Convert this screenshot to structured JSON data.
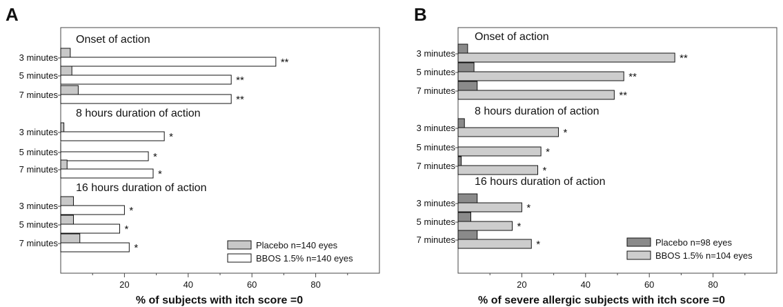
{
  "chart_data": [
    {
      "panel": "A",
      "type": "bar",
      "orientation": "horizontal",
      "xlabel": "% of subjects with itch score =0",
      "xlim": [
        0,
        100
      ],
      "xticks": [
        "20",
        "40",
        "60",
        "80"
      ],
      "colors": {
        "placebo": "#c8c8c8",
        "active": "#ffffff"
      },
      "legend": [
        "Placebo n=140 eyes",
        "BBOS 1.5% n=140 eyes"
      ],
      "legend_position": "bottom-right",
      "groups": [
        {
          "label": "Onset of action",
          "categories": [
            "3 minutes",
            "5 minutes",
            "7 minutes"
          ],
          "placebo": [
            3,
            3.5,
            5.5
          ],
          "active": [
            67.5,
            53.5,
            53.5
          ],
          "sig": [
            "**",
            "**",
            "**"
          ]
        },
        {
          "label": "8 hours duration of action",
          "categories": [
            "3 minutes",
            "5 minutes",
            "7 minutes"
          ],
          "placebo": [
            1,
            0,
            2
          ],
          "active": [
            32.5,
            27.5,
            29
          ],
          "sig": [
            "*",
            "*",
            "*"
          ]
        },
        {
          "label": "16 hours duration of action",
          "categories": [
            "3 minutes",
            "5 minutes",
            "7 minutes"
          ],
          "placebo": [
            4,
            4,
            6
          ],
          "active": [
            20,
            18.5,
            21.5
          ],
          "sig": [
            "*",
            "*",
            "*"
          ]
        }
      ]
    },
    {
      "panel": "B",
      "type": "bar",
      "orientation": "horizontal",
      "xlabel": "% of severe allergic subjects with itch score =0",
      "xlim": [
        0,
        100
      ],
      "xticks": [
        "20",
        "40",
        "60",
        "80"
      ],
      "colors": {
        "placebo": "#8a8a8a",
        "active": "#cdcdcd"
      },
      "legend": [
        "Placebo n=98 eyes",
        "BBOS 1.5% n=104 eyes"
      ],
      "legend_position": "bottom-right",
      "groups": [
        {
          "label": "Onset of action",
          "categories": [
            "3 minutes",
            "5 minutes",
            "7 minutes"
          ],
          "placebo": [
            3,
            5,
            6
          ],
          "active": [
            68,
            52,
            49
          ],
          "sig": [
            "**",
            "**",
            "**"
          ]
        },
        {
          "label": "8 hours duration of action",
          "categories": [
            "3 minutes",
            "5 minutes",
            "7 minutes"
          ],
          "placebo": [
            2,
            0,
            1
          ],
          "active": [
            31.5,
            26,
            25
          ],
          "sig": [
            "*",
            "*",
            "*"
          ]
        },
        {
          "label": "16 hours duration of action",
          "categories": [
            "3 minutes",
            "5 minutes",
            "7 minutes"
          ],
          "placebo": [
            6,
            4,
            6
          ],
          "active": [
            20,
            17,
            23
          ],
          "sig": [
            "*",
            "*",
            "*"
          ]
        }
      ]
    }
  ]
}
